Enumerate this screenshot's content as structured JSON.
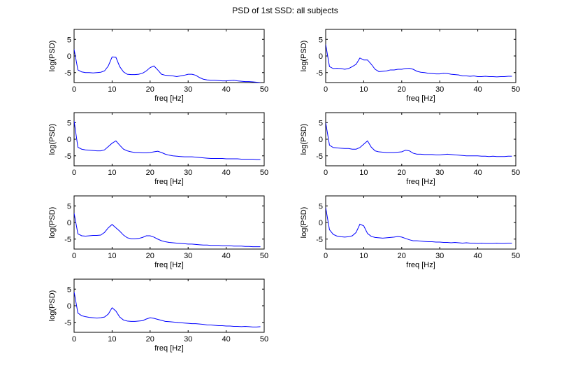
{
  "figure": {
    "title": "PSD of 1st SSD: all subjects"
  },
  "colors": {
    "line": "#0000ff",
    "axes": "#000000",
    "background": "#ffffff"
  },
  "chart_data": [
    {
      "type": "line",
      "xlabel": "freq [Hz]",
      "ylabel": "log(PSD)",
      "xlim": [
        0,
        50
      ],
      "ylim": [
        -8,
        8
      ],
      "xticks": [
        0,
        10,
        20,
        30,
        40,
        50
      ],
      "yticks": [
        -5,
        0,
        5
      ],
      "grid": false,
      "series": [
        {
          "x": [
            0,
            1,
            2,
            3,
            4,
            5,
            6,
            7,
            8,
            9,
            10,
            11,
            12,
            13,
            14,
            15,
            16,
            17,
            18,
            19,
            20,
            21,
            22,
            23,
            24,
            25,
            26,
            27,
            28,
            29,
            30,
            31,
            32,
            33,
            34,
            35,
            36,
            37,
            38,
            39,
            40,
            41,
            42,
            43,
            44,
            45,
            46,
            47,
            48,
            49
          ],
          "y": [
            2.0,
            -4.2,
            -4.8,
            -5.0,
            -5.0,
            -5.1,
            -5.0,
            -4.9,
            -4.5,
            -3.0,
            -0.3,
            -0.4,
            -3.2,
            -4.8,
            -5.5,
            -5.6,
            -5.6,
            -5.5,
            -5.2,
            -4.5,
            -3.5,
            -3.0,
            -4.2,
            -5.5,
            -5.8,
            -5.9,
            -6.0,
            -6.2,
            -6.0,
            -5.8,
            -5.5,
            -5.5,
            -5.8,
            -6.5,
            -7.0,
            -7.2,
            -7.3,
            -7.3,
            -7.4,
            -7.5,
            -7.5,
            -7.4,
            -7.3,
            -7.5,
            -7.6,
            -7.7,
            -7.7,
            -7.8,
            -7.9,
            -8.0
          ]
        }
      ]
    },
    {
      "type": "line",
      "xlabel": "freq [Hz]",
      "ylabel": "log(PSD)",
      "xlim": [
        0,
        50
      ],
      "ylim": [
        -8,
        8
      ],
      "xticks": [
        0,
        10,
        20,
        30,
        40,
        50
      ],
      "yticks": [
        -5,
        0,
        5
      ],
      "grid": false,
      "series": [
        {
          "x": [
            0,
            1,
            2,
            3,
            4,
            5,
            6,
            7,
            8,
            9,
            10,
            11,
            12,
            13,
            14,
            15,
            16,
            17,
            18,
            19,
            20,
            21,
            22,
            23,
            24,
            25,
            26,
            27,
            28,
            29,
            30,
            31,
            32,
            33,
            34,
            35,
            36,
            37,
            38,
            39,
            40,
            41,
            42,
            43,
            44,
            45,
            46,
            47,
            48,
            49
          ],
          "y": [
            3.5,
            -3.2,
            -3.8,
            -3.7,
            -3.8,
            -4.0,
            -3.8,
            -3.2,
            -2.5,
            -0.6,
            -1.2,
            -1.2,
            -2.5,
            -4.0,
            -4.7,
            -4.6,
            -4.5,
            -4.2,
            -4.2,
            -4.0,
            -4.0,
            -3.8,
            -3.7,
            -4.0,
            -4.6,
            -4.9,
            -5.0,
            -5.2,
            -5.3,
            -5.4,
            -5.4,
            -5.2,
            -5.3,
            -5.5,
            -5.6,
            -5.7,
            -6.0,
            -6.0,
            -6.1,
            -6.0,
            -6.2,
            -6.2,
            -6.1,
            -6.2,
            -6.2,
            -6.3,
            -6.2,
            -6.2,
            -6.1,
            -6.1
          ]
        }
      ]
    },
    {
      "type": "line",
      "xlabel": "freq [Hz]",
      "ylabel": "log(PSD)",
      "xlim": [
        0,
        50
      ],
      "ylim": [
        -8,
        8
      ],
      "xticks": [
        0,
        10,
        20,
        30,
        40,
        50
      ],
      "yticks": [
        -5,
        0,
        5
      ],
      "grid": false,
      "series": [
        {
          "x": [
            0,
            1,
            2,
            3,
            4,
            5,
            6,
            7,
            8,
            9,
            10,
            11,
            12,
            13,
            14,
            15,
            16,
            17,
            18,
            19,
            20,
            21,
            22,
            23,
            24,
            25,
            26,
            27,
            28,
            29,
            30,
            31,
            32,
            33,
            34,
            35,
            36,
            37,
            38,
            39,
            40,
            41,
            42,
            43,
            44,
            45,
            46,
            47,
            48,
            49
          ],
          "y": [
            5.5,
            -2.4,
            -3.0,
            -3.2,
            -3.3,
            -3.4,
            -3.5,
            -3.5,
            -3.2,
            -2.2,
            -1.2,
            -0.5,
            -1.8,
            -3.0,
            -3.5,
            -3.8,
            -4.0,
            -4.0,
            -4.1,
            -4.1,
            -4.0,
            -3.8,
            -3.6,
            -4.0,
            -4.5,
            -4.8,
            -5.0,
            -5.1,
            -5.2,
            -5.3,
            -5.3,
            -5.3,
            -5.4,
            -5.5,
            -5.6,
            -5.7,
            -5.8,
            -5.8,
            -5.8,
            -5.8,
            -5.9,
            -5.9,
            -5.9,
            -5.9,
            -6.0,
            -6.0,
            -6.0,
            -6.0,
            -6.1,
            -6.1
          ]
        }
      ]
    },
    {
      "type": "line",
      "xlabel": "freq [Hz]",
      "ylabel": "log(PSD)",
      "xlim": [
        0,
        50
      ],
      "ylim": [
        -8,
        8
      ],
      "xticks": [
        0,
        10,
        20,
        30,
        40,
        50
      ],
      "yticks": [
        -5,
        0,
        5
      ],
      "grid": false,
      "series": [
        {
          "x": [
            0,
            1,
            2,
            3,
            4,
            5,
            6,
            7,
            8,
            9,
            10,
            11,
            12,
            13,
            14,
            15,
            16,
            17,
            18,
            19,
            20,
            21,
            22,
            23,
            24,
            25,
            26,
            27,
            28,
            29,
            30,
            31,
            32,
            33,
            34,
            35,
            36,
            37,
            38,
            39,
            40,
            41,
            42,
            43,
            44,
            45,
            46,
            47,
            48,
            49
          ],
          "y": [
            5.0,
            -1.8,
            -2.5,
            -2.6,
            -2.7,
            -2.8,
            -2.8,
            -3.0,
            -3.0,
            -2.5,
            -1.5,
            -0.5,
            -2.4,
            -3.5,
            -3.8,
            -3.9,
            -4.0,
            -4.0,
            -4.0,
            -3.9,
            -3.8,
            -3.3,
            -3.5,
            -4.2,
            -4.5,
            -4.5,
            -4.6,
            -4.6,
            -4.6,
            -4.7,
            -4.7,
            -4.6,
            -4.5,
            -4.6,
            -4.7,
            -4.8,
            -4.9,
            -5.0,
            -5.0,
            -5.0,
            -5.0,
            -5.1,
            -5.1,
            -5.2,
            -5.1,
            -5.2,
            -5.2,
            -5.2,
            -5.1,
            -5.1
          ]
        }
      ]
    },
    {
      "type": "line",
      "xlabel": "freq [Hz]",
      "ylabel": "log(PSD)",
      "xlim": [
        0,
        50
      ],
      "ylim": [
        -8,
        8
      ],
      "xticks": [
        0,
        10,
        20,
        30,
        40,
        50
      ],
      "yticks": [
        -5,
        0,
        5
      ],
      "grid": false,
      "series": [
        {
          "x": [
            0,
            1,
            2,
            3,
            4,
            5,
            6,
            7,
            8,
            9,
            10,
            11,
            12,
            13,
            14,
            15,
            16,
            17,
            18,
            19,
            20,
            21,
            22,
            23,
            24,
            25,
            26,
            27,
            28,
            29,
            30,
            31,
            32,
            33,
            34,
            35,
            36,
            37,
            38,
            39,
            40,
            41,
            42,
            43,
            44,
            45,
            46,
            47,
            48,
            49
          ],
          "y": [
            2.8,
            -3.4,
            -4.0,
            -4.1,
            -4.0,
            -3.9,
            -3.9,
            -3.8,
            -3.0,
            -1.6,
            -0.6,
            -1.6,
            -2.6,
            -3.8,
            -4.6,
            -4.9,
            -4.9,
            -4.8,
            -4.5,
            -4.0,
            -4.0,
            -4.4,
            -5.0,
            -5.5,
            -5.8,
            -6.0,
            -6.1,
            -6.2,
            -6.3,
            -6.4,
            -6.5,
            -6.5,
            -6.6,
            -6.7,
            -6.8,
            -6.8,
            -6.9,
            -6.9,
            -6.9,
            -7.0,
            -7.0,
            -7.0,
            -7.1,
            -7.1,
            -7.1,
            -7.2,
            -7.2,
            -7.3,
            -7.3,
            -7.3
          ]
        }
      ]
    },
    {
      "type": "line",
      "xlabel": "freq [Hz]",
      "ylabel": "log(PSD)",
      "xlim": [
        0,
        50
      ],
      "ylim": [
        -8,
        8
      ],
      "xticks": [
        0,
        10,
        20,
        30,
        40,
        50
      ],
      "yticks": [
        -5,
        0,
        5
      ],
      "grid": false,
      "series": [
        {
          "x": [
            0,
            1,
            2,
            3,
            4,
            5,
            6,
            7,
            8,
            9,
            10,
            11,
            12,
            13,
            14,
            15,
            16,
            17,
            18,
            19,
            20,
            21,
            22,
            23,
            24,
            25,
            26,
            27,
            28,
            29,
            30,
            31,
            32,
            33,
            34,
            35,
            36,
            37,
            38,
            39,
            40,
            41,
            42,
            43,
            44,
            45,
            46,
            47,
            48,
            49
          ],
          "y": [
            4.5,
            -2.2,
            -3.6,
            -4.1,
            -4.3,
            -4.4,
            -4.3,
            -4.0,
            -3.0,
            -0.5,
            -1.0,
            -3.3,
            -4.2,
            -4.5,
            -4.6,
            -4.7,
            -4.6,
            -4.5,
            -4.4,
            -4.2,
            -4.4,
            -4.8,
            -5.2,
            -5.5,
            -5.5,
            -5.6,
            -5.7,
            -5.8,
            -5.8,
            -5.9,
            -5.9,
            -6.0,
            -6.0,
            -6.1,
            -6.0,
            -6.1,
            -6.2,
            -6.1,
            -6.2,
            -6.2,
            -6.3,
            -6.2,
            -6.3,
            -6.3,
            -6.3,
            -6.2,
            -6.3,
            -6.3,
            -6.2,
            -6.2
          ]
        }
      ]
    },
    {
      "type": "line",
      "xlabel": "freq [Hz]",
      "ylabel": "log(PSD)",
      "xlim": [
        0,
        50
      ],
      "ylim": [
        -8,
        8
      ],
      "xticks": [
        0,
        10,
        20,
        30,
        40,
        50
      ],
      "yticks": [
        -5,
        0,
        5
      ],
      "grid": false,
      "series": [
        {
          "x": [
            0,
            1,
            2,
            3,
            4,
            5,
            6,
            7,
            8,
            9,
            10,
            11,
            12,
            13,
            14,
            15,
            16,
            17,
            18,
            19,
            20,
            21,
            22,
            23,
            24,
            25,
            26,
            27,
            28,
            29,
            30,
            31,
            32,
            33,
            34,
            35,
            36,
            37,
            38,
            39,
            40,
            41,
            42,
            43,
            44,
            45,
            46,
            47,
            48,
            49
          ],
          "y": [
            4.2,
            -2.2,
            -3.0,
            -3.3,
            -3.5,
            -3.6,
            -3.7,
            -3.6,
            -3.4,
            -2.5,
            -0.6,
            -1.6,
            -3.4,
            -4.3,
            -4.6,
            -4.7,
            -4.7,
            -4.6,
            -4.5,
            -4.0,
            -3.6,
            -3.8,
            -4.1,
            -4.4,
            -4.7,
            -4.8,
            -4.9,
            -5.0,
            -5.1,
            -5.2,
            -5.3,
            -5.4,
            -5.4,
            -5.5,
            -5.6,
            -5.8,
            -5.8,
            -5.9,
            -6.0,
            -6.0,
            -6.1,
            -6.1,
            -6.2,
            -6.2,
            -6.3,
            -6.2,
            -6.3,
            -6.4,
            -6.4,
            -6.3
          ]
        }
      ]
    }
  ]
}
